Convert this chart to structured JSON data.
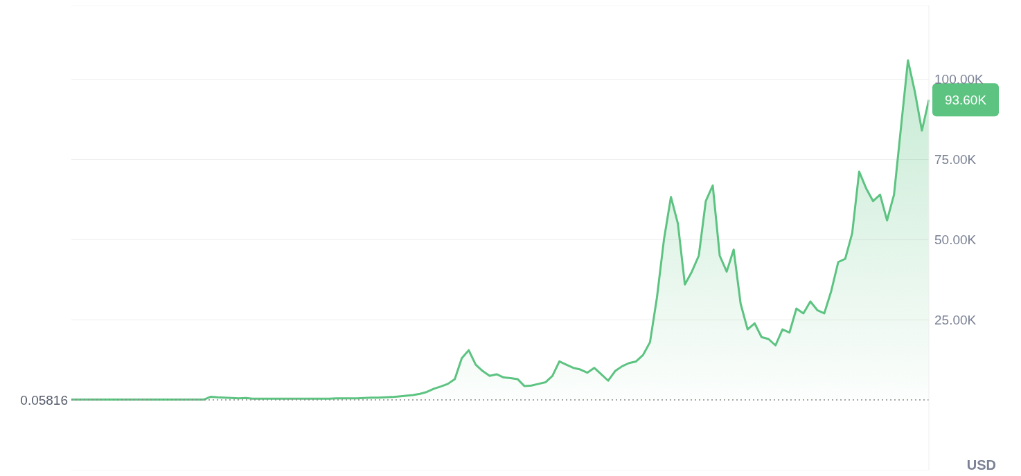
{
  "chart_data": {
    "type": "area",
    "categories": [
      null,
      null,
      null,
      null,
      null,
      null,
      null,
      null,
      null,
      null,
      null,
      null,
      null,
      null,
      null,
      null,
      null,
      null,
      null,
      null,
      null,
      null,
      null,
      null,
      null,
      null,
      null,
      null,
      null,
      null,
      null,
      null,
      null,
      null,
      null,
      null,
      null,
      null,
      null,
      null,
      null,
      null,
      null,
      null,
      null,
      null,
      null,
      null,
      null,
      null,
      null,
      null,
      null,
      null,
      null,
      null,
      null,
      null,
      null,
      null,
      null,
      null,
      null,
      null,
      null,
      null,
      null,
      null,
      null,
      null,
      null,
      null,
      null,
      null,
      null,
      null,
      null,
      null,
      null,
      null,
      null,
      null,
      null,
      null,
      null,
      null,
      null,
      null,
      null,
      null,
      null,
      null,
      null,
      null,
      null,
      null,
      null,
      null,
      null,
      null,
      null,
      null,
      null,
      null,
      null,
      null,
      null,
      null,
      null,
      null,
      null,
      null,
      null,
      null,
      null,
      null,
      null,
      null,
      null,
      null,
      null,
      null,
      null,
      null
    ],
    "series": [
      {
        "color": "#5cc381",
        "values": [
          100,
          100,
          100,
          100,
          100,
          100,
          100,
          100,
          100,
          100,
          100,
          100,
          100,
          100,
          100,
          100,
          100,
          100,
          100,
          100,
          1000,
          800,
          700,
          600,
          500,
          600,
          400,
          400,
          400,
          400,
          400,
          400,
          400,
          400,
          400,
          400,
          400,
          400,
          500,
          500,
          500,
          500,
          600,
          700,
          700,
          800,
          900,
          1100,
          1300,
          1500,
          1900,
          2500,
          3500,
          4200,
          5000,
          6500,
          13000,
          15500,
          11000,
          9000,
          7500,
          8000,
          7000,
          6800,
          6500,
          4300,
          4500,
          5000,
          5500,
          7500,
          12000,
          11000,
          10000,
          9500,
          8500,
          10000,
          8000,
          6000,
          9000,
          10500,
          11500,
          12000,
          14000,
          18000,
          32000,
          50000,
          63300,
          55000,
          36000,
          40000,
          45000,
          62000,
          66900,
          45000,
          40000,
          46900,
          30000,
          22000,
          23900,
          19600,
          19000,
          17000,
          22000,
          21000,
          28500,
          27000,
          30700,
          28000,
          27000,
          34000,
          43000,
          44000,
          52000,
          71200,
          66000,
          62000,
          64000,
          56000,
          64000,
          85000,
          105900,
          96000,
          84000,
          93600
        ]
      }
    ],
    "ylim": [
      -22000,
      123000
    ],
    "yticks": [
      {
        "value": 25000,
        "label": "25.00K"
      },
      {
        "value": 50000,
        "label": "50.00K"
      },
      {
        "value": 75000,
        "label": "75.00K"
      },
      {
        "value": 100000,
        "label": "100.00K"
      }
    ],
    "grid": "y",
    "tick_labels": "y",
    "ref_lines": [
      {
        "axis": "y",
        "value": 0.05816,
        "label": "0.05816",
        "color": "#888888",
        "line_style": "dotted"
      }
    ],
    "annotations": [
      "93.60K",
      "USD"
    ]
  }
}
